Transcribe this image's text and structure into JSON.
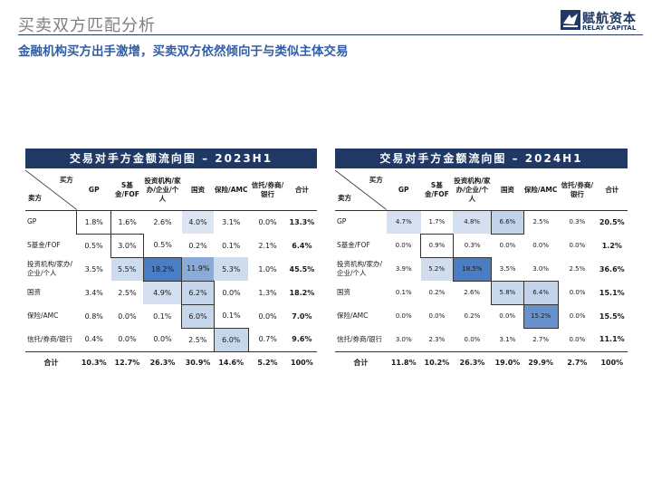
{
  "page_title": "买卖双方匹配分析",
  "logo": {
    "cn": "赋航资本",
    "en": "RELAY CAPITAL",
    "brand_color": "#1f3864"
  },
  "headline": "金融机构买方出手激增，买卖双方依然倾向于与类似主体交易",
  "heat_color_low": "#dce6f2",
  "heat_color_high": "#4a7dc4",
  "tables": [
    {
      "title": "交易对手方金额流向图 – 2023H1",
      "corner_top": "买方",
      "corner_bottom": "卖方",
      "columns": [
        "GP",
        "S基金/FOF",
        "投资机构/家办/企业/个人",
        "国资",
        "保险/AMC",
        "信托/券商/银行",
        "合计"
      ],
      "rows": [
        {
          "label": "GP",
          "values": [
            "1.8%",
            "1.6%",
            "2.6%",
            "4.0%",
            "3.1%",
            "0.0%",
            "13.3%"
          ]
        },
        {
          "label": "S基金/FOF",
          "values": [
            "0.5%",
            "3.0%",
            "0.5%",
            "0.2%",
            "0.1%",
            "2.1%",
            "6.4%"
          ]
        },
        {
          "label": "投资机构/家办/企业/个人",
          "values": [
            "3.5%",
            "5.5%",
            "18.2%",
            "11.9%",
            "5.3%",
            "1.0%",
            "45.5%"
          ]
        },
        {
          "label": "国资",
          "values": [
            "3.4%",
            "2.5%",
            "4.9%",
            "6.2%",
            "0.0%",
            "1.3%",
            "18.2%"
          ]
        },
        {
          "label": "保险/AMC",
          "values": [
            "0.8%",
            "0.0%",
            "0.1%",
            "6.0%",
            "0.1%",
            "0.0%",
            "7.0%"
          ]
        },
        {
          "label": "信托/券商/银行",
          "values": [
            "0.4%",
            "0.0%",
            "0.0%",
            "2.5%",
            "6.0%",
            "0.7%",
            "9.6%"
          ]
        }
      ],
      "total_row": {
        "label": "合计",
        "values": [
          "10.3%",
          "12.7%",
          "26.3%",
          "30.9%",
          "14.6%",
          "5.2%",
          "100%"
        ]
      }
    },
    {
      "title": "交易对手方金额流向图 – 2024H1",
      "corner_top": "买方",
      "corner_bottom": "卖方",
      "columns": [
        "GP",
        "S基金/FOF",
        "投资机构/家办/企业/个人",
        "国资",
        "保险/AMC",
        "信托/券商/银行",
        "合计"
      ],
      "rows": [
        {
          "label": "GP",
          "values": [
            "4.7%",
            "1.7%",
            "4.8%",
            "6.6%",
            "2.5%",
            "0.3%",
            "20.5%"
          ]
        },
        {
          "label": "S基金/FOF",
          "values": [
            "0.0%",
            "0.9%",
            "0.3%",
            "0.0%",
            "0.0%",
            "0.0%",
            "1.2%"
          ]
        },
        {
          "label": "投资机构/家办/企业/个人",
          "values": [
            "3.9%",
            "5.2%",
            "18.5%",
            "3.5%",
            "3.0%",
            "2.5%",
            "36.6%"
          ]
        },
        {
          "label": "国资",
          "values": [
            "0.1%",
            "0.2%",
            "2.6%",
            "5.8%",
            "6.4%",
            "0.0%",
            "15.1%"
          ]
        },
        {
          "label": "保险/AMC",
          "values": [
            "0.0%",
            "0.0%",
            "0.2%",
            "0.0%",
            "15.2%",
            "0.0%",
            "15.5%"
          ]
        },
        {
          "label": "信托/券商/银行",
          "values": [
            "3.0%",
            "2.3%",
            "0.0%",
            "3.1%",
            "2.7%",
            "0.0%",
            "11.1%"
          ]
        }
      ],
      "total_row": {
        "label": "合计",
        "values": [
          "11.8%",
          "10.2%",
          "26.3%",
          "19.0%",
          "29.9%",
          "2.7%",
          "100%"
        ]
      }
    }
  ]
}
